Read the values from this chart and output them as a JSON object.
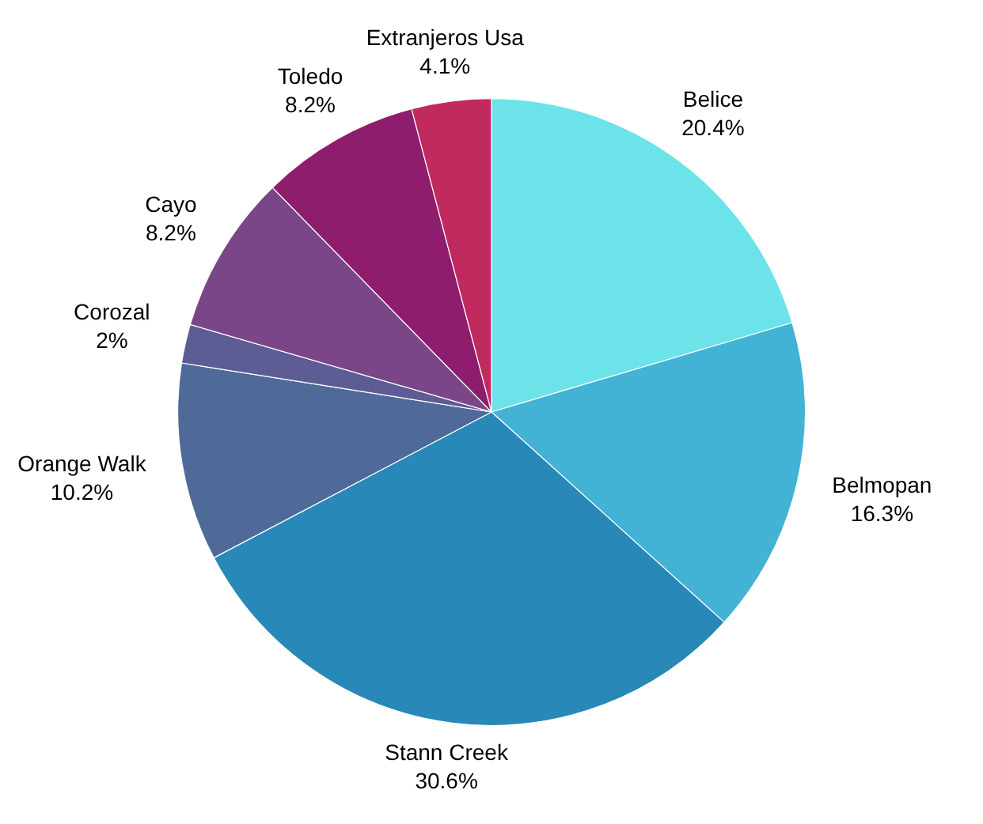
{
  "chart_data": {
    "type": "pie",
    "categories": [
      "Belice",
      "Belmopan",
      "Stann Creek",
      "Orange Walk",
      "Corozal",
      "Cayo",
      "Toledo",
      "Extranjeros Usa"
    ],
    "values": [
      20.4,
      16.3,
      30.6,
      10.2,
      2,
      8.2,
      8.2,
      4.1
    ],
    "value_labels": [
      "20.4%",
      "16.3%",
      "30.6%",
      "10.2%",
      "2%",
      "8.2%",
      "8.2%",
      "4.1%"
    ],
    "colors": [
      "#6be3e8",
      "#42b3d5",
      "#2888b8",
      "#4f6a98",
      "#5e5c94",
      "#7b4688",
      "#8f1d6e",
      "#c02a5e"
    ],
    "legend": false
  }
}
